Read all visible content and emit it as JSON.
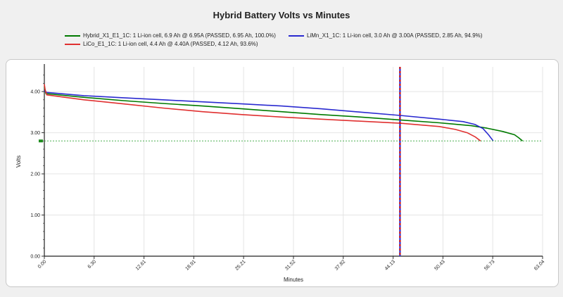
{
  "chart_data": {
    "type": "line",
    "title": "Hybrid Battery Volts vs Minutes",
    "xlabel": "Minutes",
    "ylabel": "Volts",
    "xlim": [
      0,
      63.04
    ],
    "ylim": [
      0,
      4.6
    ],
    "x_ticks": [
      "0.00",
      "6.30",
      "12.61",
      "18.91",
      "25.21",
      "31.52",
      "37.82",
      "44.13",
      "50.43",
      "56.73",
      "63.04"
    ],
    "y_ticks": [
      "0.00",
      "1.00",
      "2.00",
      "3.00",
      "4.00"
    ],
    "cutoff_volts": 2.8,
    "marker_minutes": 45.0,
    "legend_position": "top",
    "grid": true,
    "series": [
      {
        "name": "Hybrid_X1_E1_1C: 1 Li-ion cell, 6.9 Ah @ 6.95A (PASSED, 6.95 Ah, 100.0%)",
        "color": "#007a00",
        "x": [
          0,
          0.2,
          5,
          10,
          15,
          20,
          25,
          30,
          35,
          40,
          45,
          50,
          54,
          56,
          58,
          59.5,
          60,
          60.5
        ],
        "y": [
          4.12,
          3.95,
          3.86,
          3.78,
          3.71,
          3.65,
          3.58,
          3.51,
          3.44,
          3.38,
          3.31,
          3.24,
          3.17,
          3.11,
          3.03,
          2.95,
          2.88,
          2.8
        ]
      },
      {
        "name": "LiMn_X1_1C: 1 Li-ion cell, 3.0 Ah @ 3.00A (PASSED, 2.85 Ah, 94.9%)",
        "color": "#2a2ad0",
        "x": [
          0,
          0.3,
          5,
          10,
          15,
          20,
          25,
          30,
          35,
          40,
          45,
          50,
          53,
          54.5,
          55.5,
          56.2,
          56.8
        ],
        "y": [
          4.02,
          3.98,
          3.9,
          3.85,
          3.8,
          3.75,
          3.7,
          3.65,
          3.58,
          3.5,
          3.42,
          3.33,
          3.27,
          3.2,
          3.1,
          2.95,
          2.8
        ]
      },
      {
        "name": "LiCo_E1_1C: 1 Li-ion cell, 4.4 Ah @ 4.40A (PASSED, 4.12 Ah, 93.6%)",
        "color": "#e03030",
        "x": [
          0,
          0.1,
          0.3,
          5,
          10,
          15,
          20,
          25,
          30,
          35,
          40,
          45,
          50,
          52,
          53.5,
          54.5,
          55.2
        ],
        "y": [
          4.18,
          4.05,
          3.92,
          3.8,
          3.7,
          3.6,
          3.51,
          3.44,
          3.38,
          3.33,
          3.28,
          3.23,
          3.15,
          3.08,
          3.0,
          2.9,
          2.8
        ]
      }
    ]
  }
}
